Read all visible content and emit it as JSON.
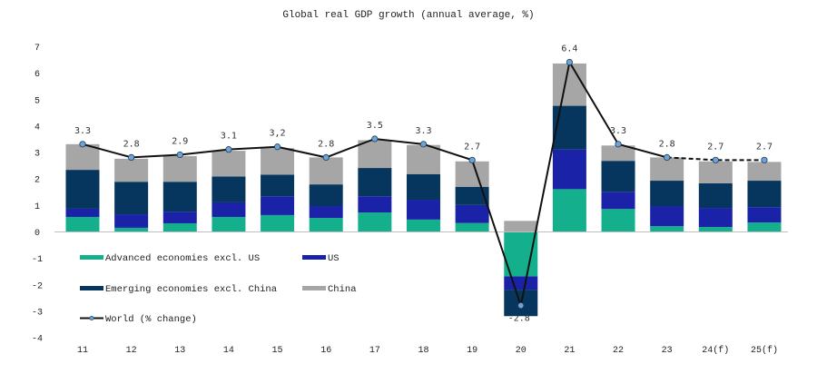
{
  "chart_data": {
    "type": "bar",
    "stacked": true,
    "title": "Global real GDP growth (annual average, %)",
    "xlabel": "",
    "ylabel": "",
    "ylim": [
      -4,
      7
    ],
    "yticks": [
      7,
      6,
      5,
      4,
      3,
      2,
      1,
      0,
      -1,
      -2,
      -3,
      -4
    ],
    "ytick_labels": [
      "7",
      "6",
      "5",
      "4",
      "3",
      "2",
      "1",
      "0",
      "-1",
      "-2",
      "-3",
      "-4"
    ],
    "grid": false,
    "legend_position": "bottom-left-inside",
    "categories": [
      "11",
      "12",
      "13",
      "14",
      "15",
      "16",
      "17",
      "18",
      "19",
      "20",
      "21",
      "22",
      "23",
      "24(f)",
      "25(f)"
    ],
    "series": [
      {
        "name": "Advanced economies excl. US",
        "color": "#14B08E",
        "values": [
          0.55,
          0.14,
          0.31,
          0.55,
          0.62,
          0.51,
          0.72,
          0.45,
          0.32,
          -1.7,
          1.6,
          0.85,
          0.2,
          0.17,
          0.34
        ]
      },
      {
        "name": "US",
        "color": "#1A22A8",
        "values": [
          0.31,
          0.51,
          0.44,
          0.55,
          0.71,
          0.45,
          0.61,
          0.75,
          0.68,
          -0.5,
          1.5,
          0.65,
          0.76,
          0.72,
          0.58
        ]
      },
      {
        "name": "Emerging economies excl. China",
        "color": "#06365E",
        "values": [
          1.47,
          1.23,
          1.13,
          0.98,
          0.82,
          0.82,
          1.07,
          0.97,
          0.69,
          -1.0,
          1.65,
          1.17,
          0.96,
          0.93,
          1.0
        ]
      },
      {
        "name": "China",
        "color": "#A6A6A6",
        "values": [
          0.97,
          0.87,
          0.97,
          0.97,
          1.0,
          1.02,
          1.05,
          1.1,
          0.96,
          0.4,
          1.6,
          0.58,
          0.88,
          0.83,
          0.71
        ]
      }
    ],
    "line_series": {
      "name": "World (% change)",
      "color": "#111111",
      "marker_color": "#6FA3D6",
      "values": [
        3.3,
        2.8,
        2.9,
        3.1,
        3.2,
        2.8,
        3.5,
        3.3,
        2.7,
        -2.8,
        6.4,
        3.3,
        2.8,
        2.7,
        2.7
      ],
      "labels": [
        "3.3",
        "2.8",
        "2.9",
        "3.1",
        "3,2",
        "2.8",
        "3.5",
        "3.3",
        "2.7",
        "-2.8",
        "6.4",
        "3.3",
        "2.8",
        "2.7",
        "2.7"
      ],
      "dashed_from_index": 12
    },
    "legend": [
      {
        "label": "Advanced economies excl. US",
        "kind": "bar",
        "color": "#14B08E"
      },
      {
        "label": "US",
        "kind": "bar",
        "color": "#1A22A8"
      },
      {
        "label": "Emerging economies excl. China",
        "kind": "bar",
        "color": "#06365E"
      },
      {
        "label": "China",
        "kind": "bar",
        "color": "#A6A6A6"
      },
      {
        "label": "World (% change)",
        "kind": "line",
        "color": "#111111"
      }
    ]
  }
}
